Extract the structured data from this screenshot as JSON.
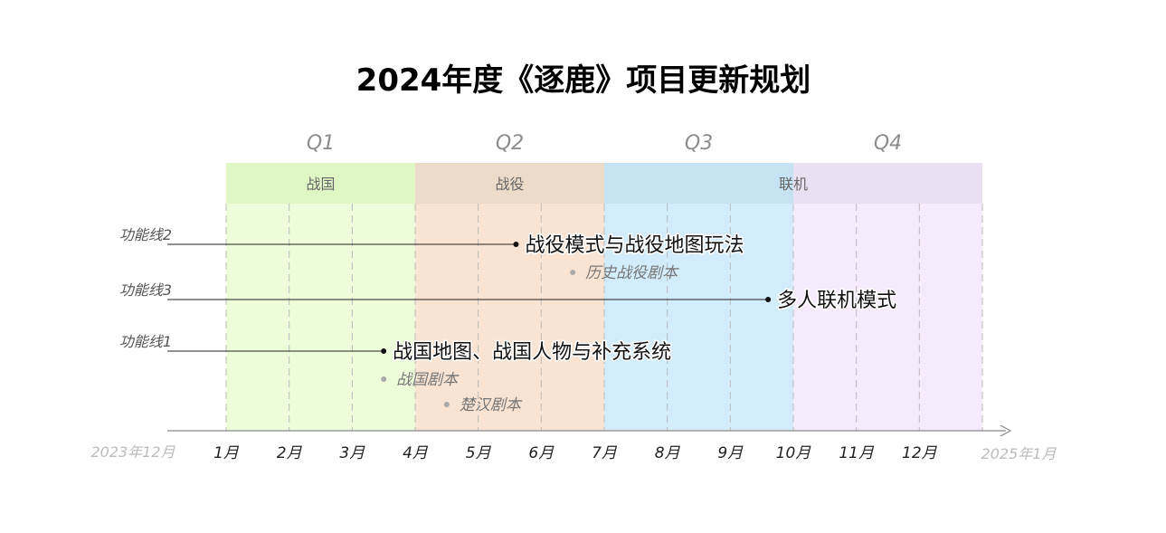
{
  "title": "2024年度《逐鹿》项目更新规划",
  "quarters": [
    "Q1",
    "Q2",
    "Q3",
    "Q4"
  ],
  "phases": [
    {
      "label": "战国",
      "start_month": 0,
      "end_month": 3,
      "band_color": "#dff7c5",
      "body_color": "#edfcd9"
    },
    {
      "label": "战役",
      "start_month": 3,
      "end_month": 6,
      "band_color": "#eddbc9",
      "body_color": "#f9e3d2"
    },
    {
      "label": "联机",
      "start_month": 6,
      "end_month": 12,
      "band_color": "#c6e3f3",
      "band_color_2": "#e9e1f3",
      "body_color": "#d3ecfb",
      "body_color_2": "#f5ebfd"
    }
  ],
  "axis": {
    "start_label": "2023年12月",
    "end_label": "2025年1月",
    "months": [
      "1月",
      "2月",
      "3月",
      "4月",
      "5月",
      "6月",
      "7月",
      "8月",
      "9月",
      "10月",
      "11月",
      "12月"
    ]
  },
  "feature_lines": [
    {
      "label": "功能线2",
      "milestone": "战役模式与战役地图玩法",
      "month": 4.6,
      "subitems": [
        {
          "text": "历史战役剧本",
          "month": 5.5
        }
      ]
    },
    {
      "label": "功能线3",
      "milestone": "多人联机模式",
      "month": 8.6,
      "subitems": []
    },
    {
      "label": "功能线1",
      "milestone": "战国地图、战国人物与补充系统",
      "month": 2.5,
      "subitems": [
        {
          "text": "战国剧本",
          "month": 2.5
        },
        {
          "text": "楚汉剧本",
          "month": 3.5
        }
      ]
    }
  ],
  "colors": {
    "title": "#000000",
    "quarter_label": "#8c8c8c",
    "axis": "#888888",
    "gridline": "#bbbbbb",
    "line_label": "#555555",
    "sub_item": "#777777",
    "muted_axis_label": "#bbbbbb"
  }
}
